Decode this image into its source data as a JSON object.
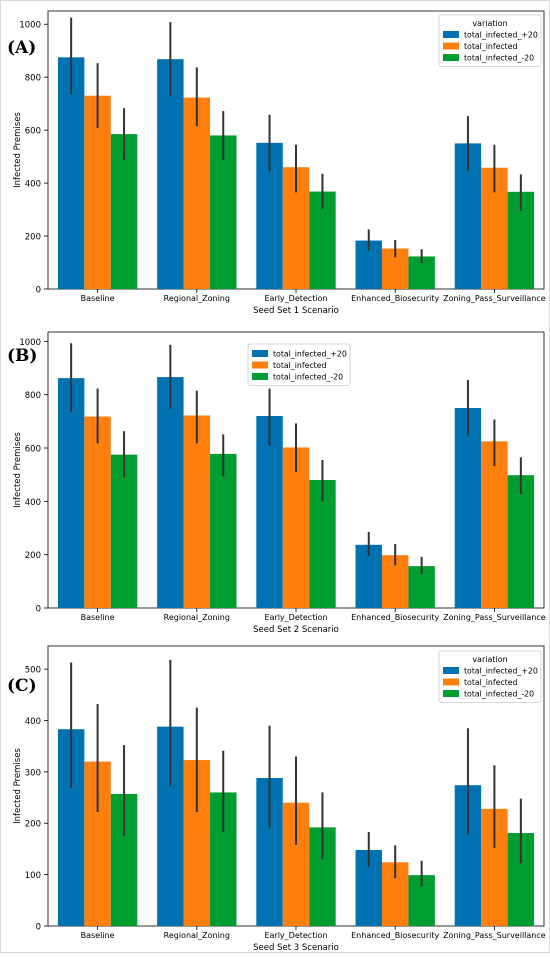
{
  "colors": {
    "plus20": "#0072b2",
    "base": "#ff7f0e",
    "minus20": "#009e30",
    "errorbar": "#333333"
  },
  "chart_data": [
    {
      "type": "bar",
      "panel_label": "(A)",
      "xlabel": "Seed Set 1 Scenario",
      "ylabel": "Infected Premises",
      "categories": [
        "Baseline",
        "Regional_Zoning",
        "Early_Detection",
        "Enhanced_Biosecurity",
        "Zoning_Pass_Surveillance"
      ],
      "ylim": [
        0,
        1050
      ],
      "yticks": [
        0,
        200,
        400,
        600,
        800,
        1000
      ],
      "legend": {
        "title": "variation",
        "placement": "top-right"
      },
      "series": [
        {
          "name": "total_infected_+20",
          "values": [
            875,
            868,
            552,
            183,
            550
          ],
          "err_low": [
            735,
            728,
            445,
            145,
            445
          ],
          "err_high": [
            1025,
            1008,
            658,
            225,
            653
          ]
        },
        {
          "name": "total_infected",
          "values": [
            730,
            723,
            460,
            153,
            458
          ],
          "err_low": [
            608,
            615,
            365,
            120,
            365
          ],
          "err_high": [
            853,
            837,
            545,
            185,
            545
          ]
        },
        {
          "name": "total_infected_-20",
          "values": [
            585,
            580,
            368,
            123,
            367
          ],
          "err_low": [
            488,
            487,
            303,
            97,
            295
          ],
          "err_high": [
            683,
            672,
            435,
            150,
            433
          ]
        }
      ]
    },
    {
      "type": "bar",
      "panel_label": "(B)",
      "xlabel": "Seed Set 2 Scenario",
      "ylabel": "Infected Premises",
      "categories": [
        "Baseline",
        "Regional_Zoning",
        "Early_Detection",
        "Enhanced_Biosecurity",
        "Zoning_Pass_Surveillance"
      ],
      "ylim": [
        0,
        1035
      ],
      "yticks": [
        0,
        200,
        400,
        600,
        800,
        1000
      ],
      "legend": {
        "title": "",
        "placement": "top-center"
      },
      "series": [
        {
          "name": "total_infected_+20",
          "values": [
            862,
            866,
            720,
            237,
            750
          ],
          "err_low": [
            733,
            747,
            608,
            195,
            647
          ],
          "err_high": [
            993,
            987,
            823,
            285,
            855
          ]
        },
        {
          "name": "total_infected",
          "values": [
            718,
            722,
            602,
            198,
            625
          ],
          "err_low": [
            617,
            617,
            510,
            160,
            532
          ],
          "err_high": [
            823,
            815,
            692,
            240,
            707
          ]
        },
        {
          "name": "total_infected_-20",
          "values": [
            575,
            578,
            480,
            157,
            498
          ],
          "err_low": [
            490,
            493,
            400,
            128,
            427
          ],
          "err_high": [
            663,
            651,
            555,
            192,
            565
          ]
        }
      ]
    },
    {
      "type": "bar",
      "panel_label": "(C)",
      "xlabel": "Seed Set 3 Scenario",
      "ylabel": "Infected Premises",
      "categories": [
        "Baseline",
        "Regional_Zoning",
        "Early_Detection",
        "Enhanced_Biosecurity",
        "Zoning_Pass_Surveillance"
      ],
      "ylim": [
        0,
        545
      ],
      "yticks": [
        0,
        100,
        200,
        300,
        400,
        500
      ],
      "legend": {
        "title": "variation",
        "placement": "top-right"
      },
      "series": [
        {
          "name": "total_infected_+20",
          "values": [
            383,
            388,
            288,
            148,
            274
          ],
          "err_low": [
            268,
            272,
            192,
            115,
            178
          ],
          "err_high": [
            513,
            518,
            390,
            183,
            385
          ]
        },
        {
          "name": "total_infected",
          "values": [
            320,
            323,
            240,
            124,
            228
          ],
          "err_low": [
            222,
            222,
            158,
            93,
            152
          ],
          "err_high": [
            432,
            425,
            330,
            157,
            313
          ]
        },
        {
          "name": "total_infected_-20",
          "values": [
            257,
            260,
            192,
            99,
            181
          ],
          "err_low": [
            175,
            183,
            130,
            77,
            122
          ],
          "err_high": [
            352,
            341,
            260,
            127,
            248
          ]
        }
      ]
    }
  ]
}
